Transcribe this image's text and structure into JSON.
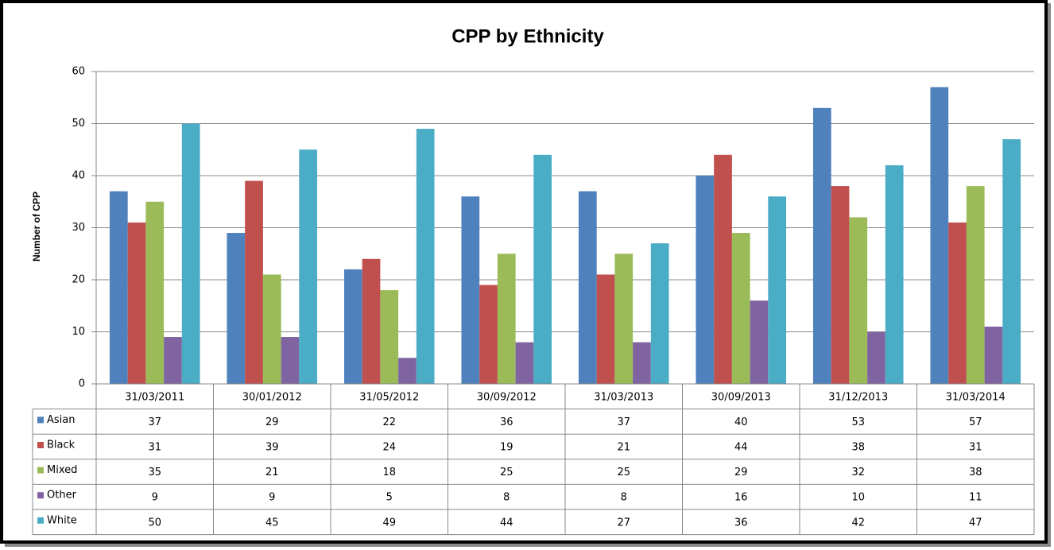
{
  "chart_data": {
    "type": "bar",
    "title": "CPP by Ethnicity",
    "y_label": "Number of CPP",
    "categories": [
      "31/03/2011",
      "30/01/2012",
      "31/05/2012",
      "30/09/2012",
      "31/03/2013",
      "30/09/2013",
      "31/12/2013",
      "31/03/2014"
    ],
    "series": [
      {
        "name": "Asian",
        "color": "#4f81bd",
        "values": [
          37,
          29,
          22,
          36,
          37,
          40,
          53,
          57
        ]
      },
      {
        "name": "Black",
        "color": "#c0504d",
        "values": [
          31,
          39,
          24,
          19,
          21,
          44,
          38,
          31
        ]
      },
      {
        "name": "Mixed",
        "color": "#9bbb59",
        "values": [
          35,
          21,
          18,
          25,
          25,
          29,
          32,
          38
        ]
      },
      {
        "name": "Other",
        "color": "#8064a2",
        "values": [
          9,
          9,
          5,
          8,
          8,
          16,
          10,
          11
        ]
      },
      {
        "name": "White",
        "color": "#4bacc6",
        "values": [
          50,
          45,
          49,
          44,
          27,
          36,
          42,
          47
        ]
      }
    ],
    "ylim": [
      0,
      60
    ],
    "yticks": [
      0,
      10,
      20,
      30,
      40,
      50,
      60
    ],
    "grid": true
  }
}
